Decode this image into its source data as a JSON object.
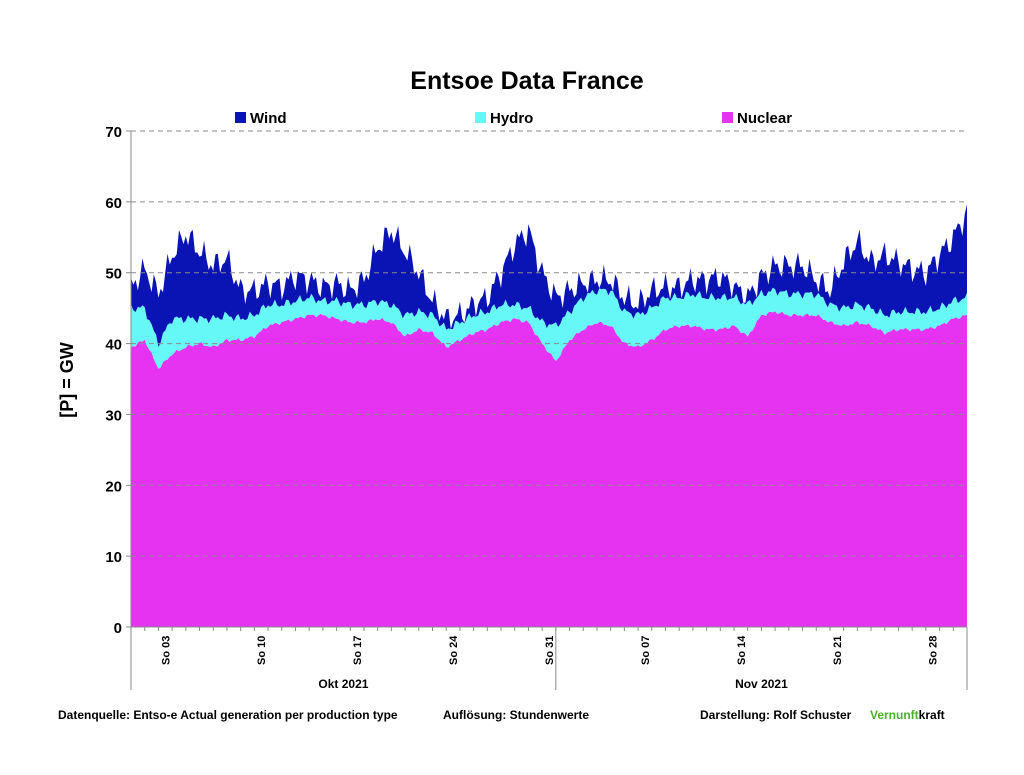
{
  "chart_data": {
    "type": "area",
    "stacked": true,
    "title": "Entsoe Data France",
    "ylabel": "[P]  = GW",
    "xlabel": "",
    "ylim": [
      0,
      70
    ],
    "yticks": [
      0,
      10,
      20,
      30,
      40,
      50,
      60,
      70
    ],
    "grid": "horizontal dashed",
    "legend_position": "top",
    "resolution_note": "hourly values, 1 Oct 2021 - 30 Nov 2021",
    "x_tick_labels": [
      "So 03",
      "So 10",
      "So 17",
      "So 24",
      "So 31",
      "So 07",
      "So 14",
      "So 21",
      "So 28"
    ],
    "x_tick_days": [
      2,
      9,
      16,
      23,
      30,
      37,
      44,
      51,
      58
    ],
    "month_labels": [
      "Okt 2021",
      "Nov 2021"
    ],
    "month_spans": [
      [
        0,
        31
      ],
      [
        31,
        61
      ]
    ],
    "x_range_days": [
      0,
      61
    ],
    "series": [
      {
        "name": "Nuclear",
        "color": "#e633f2",
        "values": [
          39.5,
          40.5,
          36.5,
          38.5,
          39.5,
          40.0,
          39.5,
          40.5,
          40.5,
          41.0,
          42.5,
          43.0,
          43.5,
          44.0,
          44.0,
          43.5,
          43.0,
          43.0,
          43.5,
          43.0,
          41.0,
          42.0,
          41.5,
          39.5,
          40.5,
          41.5,
          42.0,
          43.0,
          43.5,
          43.0,
          40.0,
          37.5,
          40.5,
          42.0,
          43.0,
          42.5,
          40.0,
          39.5,
          40.5,
          42.0,
          42.5,
          42.5,
          42.0,
          42.0,
          42.5,
          41.0,
          44.0,
          44.5,
          44.0,
          44.0,
          44.0,
          43.0,
          42.5,
          43.0,
          42.5,
          41.5,
          42.0,
          42.0,
          42.0,
          42.5,
          43.5,
          44.0
        ]
      },
      {
        "name": "Hydro",
        "color": "#66f7f7",
        "values": [
          5.5,
          4.5,
          3.5,
          5.0,
          4.0,
          3.5,
          4.0,
          3.5,
          3.0,
          3.0,
          3.0,
          2.5,
          2.5,
          2.5,
          2.0,
          2.5,
          2.5,
          2.5,
          2.5,
          2.5,
          3.0,
          2.5,
          2.5,
          2.5,
          2.5,
          2.5,
          2.5,
          2.5,
          2.0,
          2.0,
          3.0,
          5.0,
          4.0,
          4.5,
          4.5,
          5.0,
          4.5,
          4.5,
          4.5,
          4.5,
          4.0,
          4.5,
          4.5,
          4.5,
          4.0,
          4.5,
          3.0,
          3.0,
          3.0,
          3.0,
          3.0,
          2.5,
          2.5,
          2.5,
          2.5,
          2.5,
          2.5,
          2.5,
          2.5,
          2.5,
          2.5,
          2.5
        ]
      },
      {
        "name": "Wind",
        "color": "#0a14b4",
        "values": [
          3.0,
          5.5,
          7.0,
          9.0,
          12.0,
          9.5,
          7.5,
          8.0,
          4.0,
          3.5,
          3.0,
          2.5,
          3.5,
          2.5,
          2.0,
          2.5,
          2.0,
          3.5,
          7.5,
          10.5,
          9.0,
          5.5,
          2.0,
          1.5,
          1.0,
          1.5,
          2.0,
          4.5,
          8.5,
          11.0,
          7.0,
          4.0,
          3.0,
          2.0,
          1.5,
          1.5,
          2.0,
          1.5,
          2.5,
          1.5,
          1.5,
          2.0,
          2.5,
          3.0,
          1.5,
          1.0,
          2.5,
          3.5,
          4.0,
          4.0,
          2.0,
          2.0,
          6.5,
          9.0,
          6.5,
          8.5,
          7.0,
          6.0,
          5.5,
          7.5,
          9.0,
          12.0
        ]
      }
    ]
  },
  "legend": [
    {
      "name": "Wind",
      "color": "#0a14b4"
    },
    {
      "name": "Hydro",
      "color": "#66f7f7"
    },
    {
      "name": "Nuclear",
      "color": "#e633f2"
    }
  ],
  "footer": {
    "source": "Datenquelle: Entso-e  Actual generation per production type",
    "resolution": "Auflösung: Stundenwerte",
    "credit": "Darstellung:  Rolf Schuster",
    "brand_green": "Vernunft",
    "brand_black": "kraft"
  }
}
